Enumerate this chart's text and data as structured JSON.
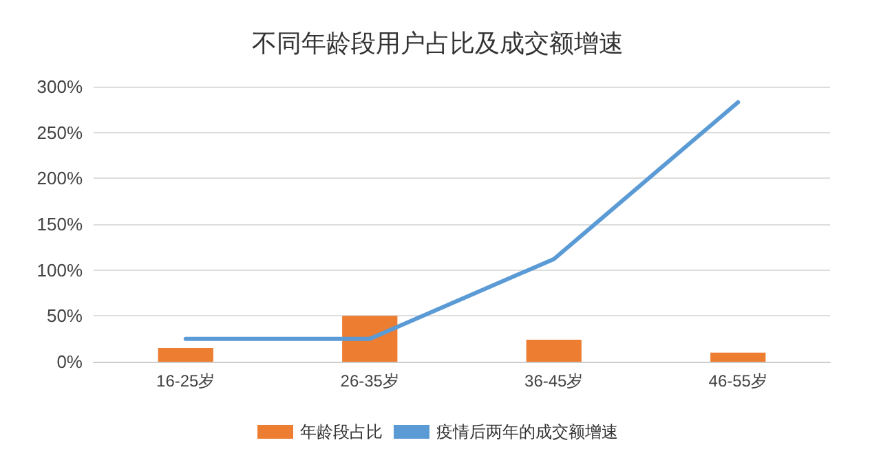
{
  "chart_data": {
    "type": "bar",
    "title": "不同年龄段用户占比及成交额增速",
    "categories": [
      "16-25岁",
      "26-35岁",
      "36-45岁",
      "46-55岁"
    ],
    "series": [
      {
        "name": "年龄段占比",
        "color": "#ed7d31",
        "values": [
          15,
          50,
          24,
          10
        ]
      },
      {
        "name": "疫情后两年的成交额增速",
        "type": "line",
        "color": "#5b9bd5",
        "values": [
          25,
          25,
          112,
          283
        ]
      }
    ],
    "ylim": [
      0,
      300
    ],
    "yticks": [
      {
        "value": 0,
        "label": "0%"
      },
      {
        "value": 50,
        "label": "50%"
      },
      {
        "value": 100,
        "label": "100%"
      },
      {
        "value": 150,
        "label": "150%"
      },
      {
        "value": 200,
        "label": "200%"
      },
      {
        "value": 250,
        "label": "250%"
      },
      {
        "value": 300,
        "label": "300%"
      }
    ],
    "grid": "y",
    "legend": "bottom",
    "marker": "none",
    "line_style": "solid"
  }
}
